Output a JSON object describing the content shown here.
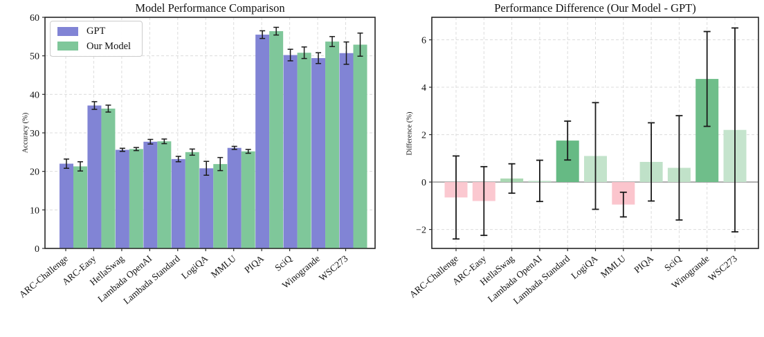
{
  "figure": {
    "background": "#ffffff"
  },
  "categories": [
    "ARC-Challenge",
    "ARC-Easy",
    "HellaSwag",
    "Lambada OpenAI",
    "Lambada Standard",
    "LogiQA",
    "MMLU",
    "PIQA",
    "SciQ",
    "Winogrande",
    "WSC273"
  ],
  "chart_data": [
    {
      "type": "bar",
      "variant": "grouped-with-error-bars",
      "title": "Model Performance Comparison",
      "xlabel": "",
      "ylabel": "Accuracy (%)",
      "ylim": [
        0,
        60
      ],
      "yticks": [
        0,
        10,
        20,
        30,
        40,
        50,
        60
      ],
      "grid": true,
      "legend_position": "upper-left",
      "categories": [
        "ARC-Challenge",
        "ARC-Easy",
        "HellaSwag",
        "Lambada OpenAI",
        "Lambada Standard",
        "LogiQA",
        "MMLU",
        "PIQA",
        "SciQ",
        "Winogrande",
        "WSC273"
      ],
      "series": [
        {
          "name": "GPT",
          "color": "#8184d5",
          "values": [
            22.0,
            37.1,
            25.6,
            27.7,
            23.2,
            20.8,
            26.1,
            55.5,
            50.2,
            49.4,
            50.7
          ],
          "errors": [
            1.2,
            1.0,
            0.4,
            0.6,
            0.7,
            1.8,
            0.4,
            1.0,
            1.5,
            1.4,
            2.9
          ]
        },
        {
          "name": "Our Model",
          "color": "#7fc79a",
          "values": [
            21.3,
            36.3,
            25.8,
            27.8,
            25.0,
            21.9,
            25.2,
            56.4,
            50.8,
            53.7,
            52.9
          ],
          "errors": [
            1.2,
            0.9,
            0.4,
            0.6,
            0.8,
            1.7,
            0.5,
            1.0,
            1.5,
            1.3,
            3.0
          ]
        }
      ],
      "error_bar_color": "#1a1a1a"
    },
    {
      "type": "bar",
      "variant": "diff-with-error-bars",
      "title": "Performance Difference (Our Model - GPT)",
      "xlabel": "",
      "ylabel": "Difference (%)",
      "ylim": [
        -2.8,
        6.95
      ],
      "yticks": [
        -2,
        0,
        2,
        4,
        6
      ],
      "grid": true,
      "zero_line": true,
      "categories": [
        "ARC-Challenge",
        "ARC-Easy",
        "HellaSwag",
        "Lambada OpenAI",
        "Lambada Standard",
        "LogiQA",
        "MMLU",
        "PIQA",
        "SciQ",
        "Winogrande",
        "WSC273"
      ],
      "values": [
        -0.65,
        -0.8,
        0.15,
        0.05,
        1.75,
        1.1,
        -0.95,
        0.85,
        0.6,
        4.35,
        2.2
      ],
      "errors": [
        1.75,
        1.45,
        0.62,
        0.87,
        0.82,
        2.25,
        0.52,
        1.65,
        2.2,
        2.0,
        4.3
      ],
      "bar_colors": [
        "#fbc8d0",
        "#fbc8d0",
        "#aad8b3",
        "#bfe1c8",
        "#66ba84",
        "#c3e3cb",
        "#fbc5cd",
        "#bfe1c8",
        "#c1e2c9",
        "#6fbe8a",
        "#c5e4cd"
      ],
      "error_bar_color": "#1a1a1a",
      "zero_line_color": "#8a8a8a"
    }
  ]
}
